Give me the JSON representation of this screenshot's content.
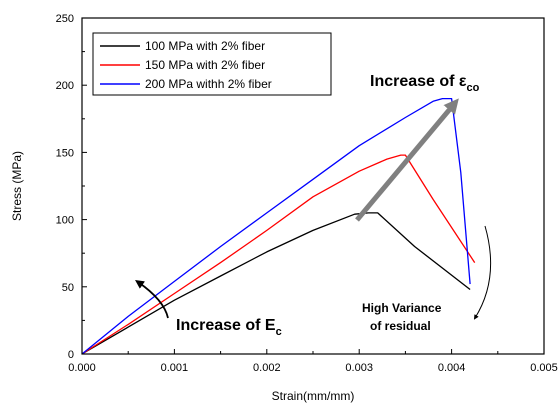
{
  "chart_data": {
    "type": "line",
    "xlabel": "Strain(mm/mm)",
    "ylabel": "Stress (MPa)",
    "xlim": [
      0,
      0.005
    ],
    "ylim": [
      0,
      250
    ],
    "x_ticks": [
      0.0,
      0.001,
      0.002,
      0.003,
      0.004,
      0.005
    ],
    "x_tick_labels": [
      "0.000",
      "0.001",
      "0.002",
      "0.003",
      "0.004",
      "0.005"
    ],
    "y_ticks": [
      0,
      50,
      100,
      150,
      200,
      250
    ],
    "y_tick_labels": [
      "0",
      "50",
      "100",
      "150",
      "200",
      "250"
    ],
    "grid": false,
    "legend": "top-left",
    "series": [
      {
        "name": "100 MPa with 2% fiber",
        "color": "#000000",
        "points": [
          [
            0,
            0
          ],
          [
            0.0005,
            20
          ],
          [
            0.001,
            40
          ],
          [
            0.0015,
            58
          ],
          [
            0.002,
            76
          ],
          [
            0.0025,
            92
          ],
          [
            0.00295,
            104
          ],
          [
            0.0031,
            105
          ],
          [
            0.0032,
            105
          ],
          [
            0.0036,
            80
          ],
          [
            0.0042,
            48
          ]
        ]
      },
      {
        "name": "150 MPa with 2% fiber",
        "color": "#ff0000",
        "points": [
          [
            0,
            0
          ],
          [
            0.0005,
            22
          ],
          [
            0.001,
            45
          ],
          [
            0.0015,
            68
          ],
          [
            0.002,
            92
          ],
          [
            0.0025,
            117
          ],
          [
            0.003,
            136
          ],
          [
            0.0033,
            145
          ],
          [
            0.00345,
            148
          ],
          [
            0.0035,
            148
          ],
          [
            0.0038,
            115
          ],
          [
            0.00425,
            68
          ]
        ]
      },
      {
        "name": "200 MPa withh 2% fiber",
        "color": "#0000ff",
        "points": [
          [
            0,
            0
          ],
          [
            0.0005,
            28
          ],
          [
            0.001,
            54
          ],
          [
            0.0015,
            80
          ],
          [
            0.002,
            105
          ],
          [
            0.0025,
            130
          ],
          [
            0.003,
            155
          ],
          [
            0.0035,
            176
          ],
          [
            0.0038,
            188
          ],
          [
            0.0039,
            190
          ],
          [
            0.004,
            190
          ],
          [
            0.0041,
            135
          ],
          [
            0.0042,
            52
          ]
        ]
      }
    ],
    "annotations": [
      {
        "text": "Increase of ε",
        "subscript": "co"
      },
      {
        "text": "Increase of E",
        "subscript": "c"
      },
      {
        "text": "High Variance"
      },
      {
        "text": "of residual"
      }
    ]
  }
}
